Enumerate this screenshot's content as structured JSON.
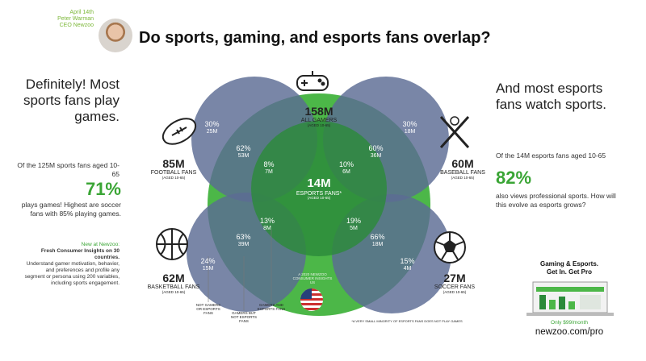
{
  "header": {
    "date": "April 14th",
    "author": "Peter Warman",
    "role": "CEO Newzoo",
    "title": "Do sports, gaming, and esports fans overlap?"
  },
  "left": {
    "headline": "Definitely! Most sports fans play games.",
    "lead": "Of the 125M sports fans aged 10-65",
    "pct": "71%",
    "desc": "plays games! Highest are soccer fans with 85% playing games.",
    "promo_new": "New at Newzoo:",
    "promo_title": "Fresh Consumer Insights on 30 countries.",
    "promo_body": "Understand gamer motivation, behavior, and preferences and profile any segment or persona using 200 variables, including sports engagement."
  },
  "right": {
    "headline": "And most esports fans watch sports.",
    "lead": "Of the 14M esports fans aged 10-65",
    "pct": "82%",
    "desc": "also views professional sports. How will this evolve as esports grows?"
  },
  "pro": {
    "title_line1": "Gaming & Esports.",
    "title_line2": "Get In. Get Pro",
    "price": "Only $99/month",
    "url": "newzoo.com/pro"
  },
  "diagram": {
    "gamers": {
      "value": "158M",
      "label": "ALL GAMERS",
      "age": "(AGED 10-65)"
    },
    "esports": {
      "value": "14M",
      "label": "ESPORTS FANS*",
      "age": "(AGED 10-65)"
    },
    "football": {
      "value": "85M",
      "label": "FOOTBALL FANS",
      "age": "(AGED 10-65)",
      "not_gamers_pct": "30%",
      "not_gamers_n": "25M",
      "gamers_pct": "62%",
      "gamers_n": "53M",
      "esports_pct": "8%",
      "esports_n": "7M"
    },
    "baseball": {
      "value": "60M",
      "label": "BASEBALL FANS",
      "age": "(AGED 10-65)",
      "not_gamers_pct": "30%",
      "not_gamers_n": "18M",
      "gamers_pct": "60%",
      "gamers_n": "36M",
      "esports_pct": "10%",
      "esports_n": "6M"
    },
    "basketball": {
      "value": "62M",
      "label": "BASKETBALL FANS",
      "age": "(AGED 10-65)",
      "not_gamers_pct": "24%",
      "not_gamers_n": "15M",
      "gamers_pct": "63%",
      "gamers_n": "39M",
      "esports_pct": "13%",
      "esports_n": "8M"
    },
    "soccer": {
      "value": "27M",
      "label": "SOCCER FANS",
      "age": "(AGED 10-65)",
      "not_gamers_pct": "15%",
      "not_gamers_n": "4M",
      "gamers_pct": "66%",
      "gamers_n": "18M",
      "esports_pct": "19%",
      "esports_n": "5M"
    },
    "legend_not": "NOT GAMERS OR ESPORTS FANS",
    "legend_gamers": "GAMERS BUT NOT ESPORTS FANS",
    "legend_both": "GAMERS AND ESPORTS FANS",
    "us_note": "A 2020 NEWZOO CONSUMER INSIGHTS US",
    "footnote": "*A VERY SMALL MINORITY OF ESPORTS FANS DOES NOT PLAY GAMES",
    "colors": {
      "gamers": "#4cb748",
      "esports": "#2c8a3a",
      "sport": "#5c6b94",
      "flag_red": "#cc2f2f",
      "flag_blue": "#27407a"
    }
  }
}
